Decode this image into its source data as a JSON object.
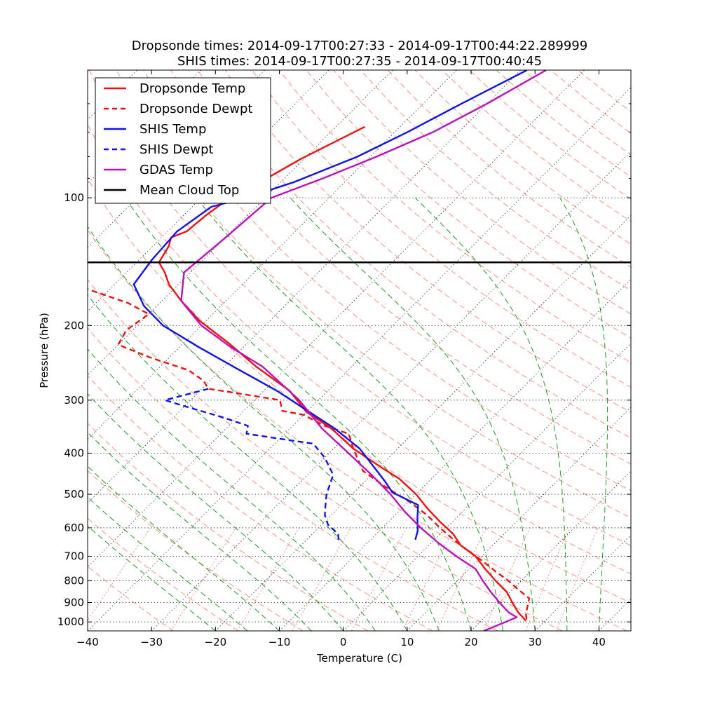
{
  "chart_data": {
    "type": "line",
    "title_line1": "Dropsonde times: 2014-09-17T00:27:33 - 2014-09-17T00:44:22.289999",
    "title_line2": "SHIS times: 2014-09-17T00:27:35 - 2014-09-17T00:40:45",
    "xlabel": "Temperature (C)",
    "ylabel": "Pressure (hPa)",
    "xlim": [
      -40,
      45
    ],
    "ylim": [
      1050,
      50
    ],
    "x_ticks": [
      -40,
      -30,
      -20,
      -10,
      0,
      10,
      20,
      30,
      40
    ],
    "y_ticks": [
      100,
      200,
      300,
      400,
      500,
      600,
      700,
      800,
      900,
      1000
    ],
    "skew": "45 degree skew-T log-P",
    "legend_position": "top-left",
    "mean_cloud_top_hpa": 142,
    "series": [
      {
        "name": "Dropsonde Temp",
        "color": "#ee1111",
        "dash": "solid",
        "points": [
          [
            -75.5,
            68
          ],
          [
            -80.5,
            81
          ],
          [
            -83.5,
            93
          ],
          [
            -85.5,
            100
          ],
          [
            -86.5,
            110
          ],
          [
            -87,
            120
          ],
          [
            -88.5,
            124
          ],
          [
            -87.5,
            130
          ],
          [
            -86.5,
            142
          ],
          [
            -84,
            150
          ],
          [
            -81.5,
            160
          ],
          [
            -77,
            175
          ],
          [
            -71,
            195
          ],
          [
            -63,
            220
          ],
          [
            -55,
            250
          ],
          [
            -46,
            285
          ],
          [
            -40,
            320
          ],
          [
            -33.5,
            350
          ],
          [
            -27,
            390
          ],
          [
            -20,
            430
          ],
          [
            -15,
            460
          ],
          [
            -10,
            500
          ],
          [
            -6,
            540
          ],
          [
            -2,
            580
          ],
          [
            2,
            620
          ],
          [
            5,
            660
          ],
          [
            9,
            700
          ],
          [
            12.5,
            750
          ],
          [
            16,
            800
          ],
          [
            19.5,
            850
          ],
          [
            22,
            900
          ],
          [
            24.5,
            950
          ],
          [
            26.5,
            985
          ],
          [
            27,
            995
          ]
        ]
      },
      {
        "name": "Dropsonde Dewpt",
        "color": "#ee1111",
        "dash": "dashed",
        "points": [
          [
            -113,
            115
          ],
          [
            -115,
            122
          ],
          [
            -114,
            130
          ],
          [
            -111,
            140
          ],
          [
            -107,
            145
          ],
          [
            -101,
            152
          ],
          [
            -95,
            162
          ],
          [
            -85,
            177
          ],
          [
            -80,
            188
          ],
          [
            -81,
            205
          ],
          [
            -80,
            222
          ],
          [
            -73,
            238
          ],
          [
            -65,
            255
          ],
          [
            -61,
            270
          ],
          [
            -59,
            282
          ],
          [
            -53,
            290
          ],
          [
            -46,
            300
          ],
          [
            -44,
            318
          ],
          [
            -40,
            325
          ],
          [
            -35,
            345
          ],
          [
            -30,
            360
          ],
          [
            -27,
            390
          ],
          [
            -22,
            440
          ],
          [
            -16,
            480
          ],
          [
            -10,
            520
          ],
          [
            -5,
            560
          ],
          [
            -1,
            600
          ],
          [
            3,
            640
          ],
          [
            7,
            680
          ],
          [
            11,
            720
          ],
          [
            14.5,
            760
          ],
          [
            18,
            800
          ],
          [
            21,
            840
          ],
          [
            24,
            880
          ],
          [
            25,
            920
          ],
          [
            26,
            960
          ],
          [
            27,
            990
          ]
        ]
      },
      {
        "name": "SHIS Temp",
        "color": "#1111ee",
        "dash": "solid",
        "points": [
          [
            -59,
            50
          ],
          [
            -64,
            60
          ],
          [
            -68,
            70
          ],
          [
            -72,
            80
          ],
          [
            -78,
            92
          ],
          [
            -83,
            100
          ],
          [
            -87,
            105
          ],
          [
            -88.5,
            120
          ],
          [
            -88,
            140
          ],
          [
            -87,
            160
          ],
          [
            -82,
            180
          ],
          [
            -76,
            200
          ],
          [
            -67,
            225
          ],
          [
            -57,
            255
          ],
          [
            -48,
            285
          ],
          [
            -40,
            318
          ],
          [
            -33,
            350
          ],
          [
            -26,
            390
          ],
          [
            -21,
            430
          ],
          [
            -17,
            465
          ],
          [
            -14,
            495
          ],
          [
            -8,
            530
          ],
          [
            -6,
            570
          ],
          [
            -4,
            610
          ],
          [
            -3,
            640
          ]
        ]
      },
      {
        "name": "SHIS Dewpt",
        "color": "#1111ee",
        "dash": "dashed",
        "points": [
          [
            -59,
            282
          ],
          [
            -64,
            300
          ],
          [
            -60,
            310
          ],
          [
            -52,
            330
          ],
          [
            -47,
            345
          ],
          [
            -46,
            360
          ],
          [
            -40,
            370
          ],
          [
            -34,
            380
          ],
          [
            -30,
            410
          ],
          [
            -26,
            450
          ],
          [
            -24,
            500
          ],
          [
            -22,
            540
          ],
          [
            -21,
            560
          ],
          [
            -19,
            590
          ],
          [
            -16,
            620
          ],
          [
            -15,
            640
          ]
        ]
      },
      {
        "name": "GDAS Temp",
        "color": "#bb11bb",
        "dash": "solid",
        "points": [
          [
            -56,
            50
          ],
          [
            -60,
            60
          ],
          [
            -64,
            70
          ],
          [
            -69,
            80
          ],
          [
            -74,
            90
          ],
          [
            -79,
            100
          ],
          [
            -80,
            125
          ],
          [
            -81,
            150
          ],
          [
            -77,
            175
          ],
          [
            -70,
            200
          ],
          [
            -62,
            225
          ],
          [
            -54,
            250
          ],
          [
            -43,
            300
          ],
          [
            -35,
            350
          ],
          [
            -27,
            400
          ],
          [
            -20,
            450
          ],
          [
            -14,
            500
          ],
          [
            -9,
            550
          ],
          [
            -4,
            600
          ],
          [
            1,
            650
          ],
          [
            6,
            700
          ],
          [
            11,
            750
          ],
          [
            14,
            800
          ],
          [
            17,
            850
          ],
          [
            20,
            900
          ],
          [
            23,
            950
          ],
          [
            25,
            975
          ],
          [
            24,
            1000
          ],
          [
            22,
            1050
          ]
        ]
      },
      {
        "name": "Mean Cloud Top",
        "color": "#000000",
        "dash": "solid",
        "points": []
      }
    ]
  }
}
